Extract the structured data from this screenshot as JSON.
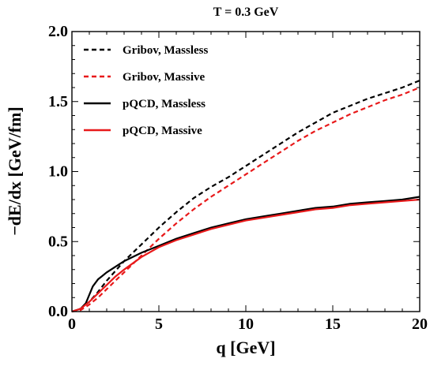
{
  "chart_data": {
    "type": "line",
    "title": "T = 0.3 GeV",
    "xlabel": "q [GeV]",
    "ylabel": "−dE/dx  [GeV/fm]",
    "xlim": [
      0,
      20
    ],
    "ylim": [
      0,
      2.0
    ],
    "xticks": [
      0,
      5,
      10,
      15,
      20
    ],
    "xtick_labels": [
      "0",
      "5",
      "10",
      "15",
      "20"
    ],
    "yticks": [
      0,
      0.5,
      1.0,
      1.5,
      2.0
    ],
    "ytick_labels": [
      "0.0",
      "0.5",
      "1.0",
      "1.5",
      "2.0"
    ],
    "grid": false,
    "legend_position": "top-left",
    "series": [
      {
        "name": "Gribov, Massless",
        "color": "#000000",
        "dash": "dashed",
        "x": [
          0,
          0.5,
          1,
          1.5,
          2,
          2.5,
          3,
          4,
          5,
          6,
          7,
          8,
          9,
          10,
          11,
          12,
          13,
          14,
          15,
          16,
          17,
          18,
          19,
          20
        ],
        "y": [
          0.0,
          0.02,
          0.07,
          0.14,
          0.22,
          0.29,
          0.36,
          0.48,
          0.6,
          0.71,
          0.81,
          0.89,
          0.96,
          1.04,
          1.12,
          1.2,
          1.28,
          1.35,
          1.42,
          1.47,
          1.52,
          1.56,
          1.6,
          1.65
        ]
      },
      {
        "name": "Gribov, Massive",
        "color": "#e8191a",
        "dash": "dashed",
        "x": [
          0,
          0.5,
          1,
          1.5,
          2,
          2.5,
          3,
          4,
          5,
          6,
          7,
          8,
          9,
          10,
          11,
          12,
          13,
          14,
          15,
          16,
          17,
          18,
          19,
          20
        ],
        "y": [
          0.0,
          0.01,
          0.05,
          0.1,
          0.16,
          0.22,
          0.28,
          0.4,
          0.52,
          0.63,
          0.73,
          0.82,
          0.9,
          0.98,
          1.06,
          1.14,
          1.22,
          1.29,
          1.35,
          1.41,
          1.46,
          1.51,
          1.55,
          1.6
        ]
      },
      {
        "name": "pQCD, Massless",
        "color": "#000000",
        "dash": "solid",
        "x": [
          0,
          0.5,
          0.8,
          1,
          1.2,
          1.5,
          2,
          2.5,
          3,
          4,
          5,
          6,
          7,
          8,
          9,
          10,
          11,
          12,
          13,
          14,
          15,
          16,
          17,
          18,
          19,
          20
        ],
        "y": [
          0.0,
          0.02,
          0.06,
          0.12,
          0.18,
          0.23,
          0.28,
          0.32,
          0.36,
          0.42,
          0.47,
          0.52,
          0.56,
          0.6,
          0.63,
          0.66,
          0.68,
          0.7,
          0.72,
          0.74,
          0.75,
          0.77,
          0.78,
          0.79,
          0.8,
          0.82
        ]
      },
      {
        "name": "pQCD, Massive",
        "color": "#e8191a",
        "dash": "solid",
        "x": [
          0,
          0.5,
          1,
          1.5,
          2,
          2.5,
          3,
          4,
          5,
          6,
          7,
          8,
          9,
          10,
          11,
          12,
          13,
          14,
          15,
          16,
          17,
          18,
          19,
          20
        ],
        "y": [
          0.0,
          0.02,
          0.07,
          0.13,
          0.19,
          0.25,
          0.3,
          0.39,
          0.46,
          0.51,
          0.55,
          0.59,
          0.62,
          0.65,
          0.67,
          0.69,
          0.71,
          0.73,
          0.74,
          0.76,
          0.77,
          0.78,
          0.79,
          0.8
        ]
      }
    ]
  }
}
